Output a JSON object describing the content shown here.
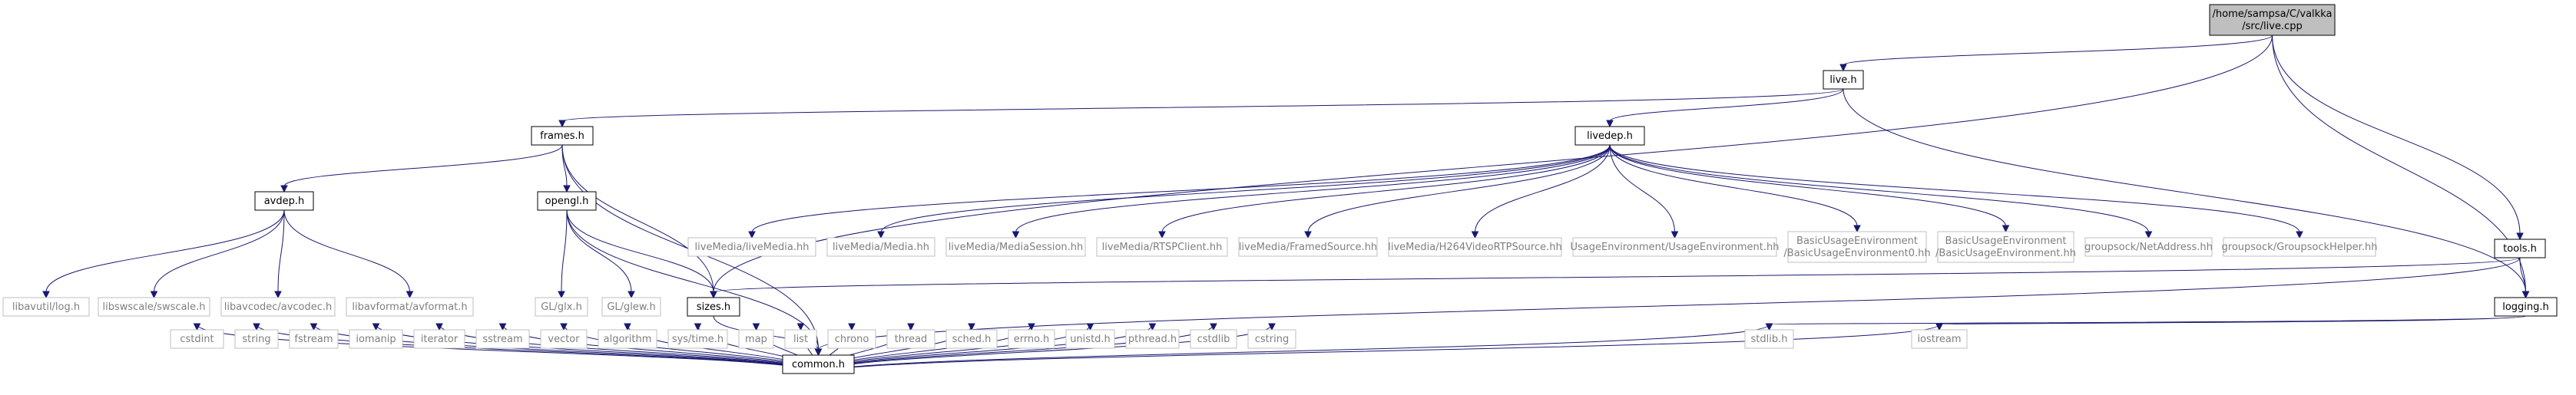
{
  "colors": {
    "edge": "#191970",
    "main_fill": "#bfbfbf",
    "node_border": "#000000",
    "external_border": "#bfbfbf",
    "external_text": "#7f7f7f"
  },
  "nodes": [
    {
      "id": "live_cpp",
      "lines": [
        "/home/sampsa/C/valkka",
        "/src/live.cpp"
      ],
      "kind": "main"
    },
    {
      "id": "live_h",
      "lines": [
        "live.h"
      ],
      "kind": "local"
    },
    {
      "id": "frames_h",
      "lines": [
        "frames.h"
      ],
      "kind": "local"
    },
    {
      "id": "livedep_h",
      "lines": [
        "livedep.h"
      ],
      "kind": "local"
    },
    {
      "id": "avdep_h",
      "lines": [
        "avdep.h"
      ],
      "kind": "local"
    },
    {
      "id": "opengl_h",
      "lines": [
        "opengl.h"
      ],
      "kind": "local"
    },
    {
      "id": "sizes_h",
      "lines": [
        "sizes.h"
      ],
      "kind": "local"
    },
    {
      "id": "tools_h",
      "lines": [
        "tools.h"
      ],
      "kind": "local"
    },
    {
      "id": "logging_h",
      "lines": [
        "logging.h"
      ],
      "kind": "local"
    },
    {
      "id": "common_h",
      "lines": [
        "common.h"
      ],
      "kind": "local"
    },
    {
      "id": "lm_livemedia",
      "lines": [
        "liveMedia/liveMedia.hh"
      ],
      "kind": "system"
    },
    {
      "id": "lm_media",
      "lines": [
        "liveMedia/Media.hh"
      ],
      "kind": "system"
    },
    {
      "id": "lm_session",
      "lines": [
        "liveMedia/MediaSession.hh"
      ],
      "kind": "system"
    },
    {
      "id": "lm_rtsp",
      "lines": [
        "liveMedia/RTSPClient.hh"
      ],
      "kind": "system"
    },
    {
      "id": "lm_framed",
      "lines": [
        "liveMedia/FramedSource.hh"
      ],
      "kind": "system"
    },
    {
      "id": "lm_h264",
      "lines": [
        "liveMedia/H264VideoRTPSource.hh"
      ],
      "kind": "system"
    },
    {
      "id": "ue",
      "lines": [
        "UsageEnvironment/UsageEnvironment.hh"
      ],
      "kind": "system"
    },
    {
      "id": "bue0",
      "lines": [
        "BasicUsageEnvironment",
        "/BasicUsageEnvironment0.hh"
      ],
      "kind": "system"
    },
    {
      "id": "bue",
      "lines": [
        "BasicUsageEnvironment",
        "/BasicUsageEnvironment.hh"
      ],
      "kind": "system"
    },
    {
      "id": "gs_net",
      "lines": [
        "groupsock/NetAddress.hh"
      ],
      "kind": "system"
    },
    {
      "id": "gs_helper",
      "lines": [
        "groupsock/GroupsockHelper.hh"
      ],
      "kind": "system"
    },
    {
      "id": "av_log",
      "lines": [
        "libavutil/log.h"
      ],
      "kind": "system"
    },
    {
      "id": "av_sws",
      "lines": [
        "libswscale/swscale.h"
      ],
      "kind": "system"
    },
    {
      "id": "av_codec",
      "lines": [
        "libavcodec/avcodec.h"
      ],
      "kind": "system"
    },
    {
      "id": "av_format",
      "lines": [
        "libavformat/avformat.h"
      ],
      "kind": "system"
    },
    {
      "id": "gl_glx",
      "lines": [
        "GL/glx.h"
      ],
      "kind": "system"
    },
    {
      "id": "gl_glew",
      "lines": [
        "GL/glew.h"
      ],
      "kind": "system"
    },
    {
      "id": "cstdint",
      "lines": [
        "cstdint"
      ],
      "kind": "system"
    },
    {
      "id": "string",
      "lines": [
        "string"
      ],
      "kind": "system"
    },
    {
      "id": "fstream",
      "lines": [
        "fstream"
      ],
      "kind": "system"
    },
    {
      "id": "iomanip",
      "lines": [
        "iomanip"
      ],
      "kind": "system"
    },
    {
      "id": "iterator",
      "lines": [
        "iterator"
      ],
      "kind": "system"
    },
    {
      "id": "sstream",
      "lines": [
        "sstream"
      ],
      "kind": "system"
    },
    {
      "id": "vector",
      "lines": [
        "vector"
      ],
      "kind": "system"
    },
    {
      "id": "algorithm",
      "lines": [
        "algorithm"
      ],
      "kind": "system"
    },
    {
      "id": "sys_time",
      "lines": [
        "sys/time.h"
      ],
      "kind": "system"
    },
    {
      "id": "map",
      "lines": [
        "map"
      ],
      "kind": "system"
    },
    {
      "id": "list",
      "lines": [
        "list"
      ],
      "kind": "system"
    },
    {
      "id": "chrono",
      "lines": [
        "chrono"
      ],
      "kind": "system"
    },
    {
      "id": "thread",
      "lines": [
        "thread"
      ],
      "kind": "system"
    },
    {
      "id": "sched",
      "lines": [
        "sched.h"
      ],
      "kind": "system"
    },
    {
      "id": "errno",
      "lines": [
        "errno.h"
      ],
      "kind": "system"
    },
    {
      "id": "unistd",
      "lines": [
        "unistd.h"
      ],
      "kind": "system"
    },
    {
      "id": "pthread",
      "lines": [
        "pthread.h"
      ],
      "kind": "system"
    },
    {
      "id": "cstdlib",
      "lines": [
        "cstdlib"
      ],
      "kind": "system"
    },
    {
      "id": "cstring",
      "lines": [
        "cstring"
      ],
      "kind": "system"
    },
    {
      "id": "stdlib",
      "lines": [
        "stdlib.h"
      ],
      "kind": "system"
    },
    {
      "id": "iostream",
      "lines": [
        "iostream"
      ],
      "kind": "system"
    }
  ],
  "edges": [
    [
      "live_cpp",
      "live_h"
    ],
    [
      "live_cpp",
      "sizes_h"
    ],
    [
      "live_cpp",
      "tools_h"
    ],
    [
      "live_cpp",
      "logging_h"
    ],
    [
      "live_h",
      "frames_h"
    ],
    [
      "live_h",
      "livedep_h"
    ],
    [
      "live_h",
      "logging_h"
    ],
    [
      "frames_h",
      "avdep_h"
    ],
    [
      "frames_h",
      "opengl_h"
    ],
    [
      "frames_h",
      "sizes_h"
    ],
    [
      "frames_h",
      "common_h"
    ],
    [
      "livedep_h",
      "lm_livemedia"
    ],
    [
      "livedep_h",
      "lm_media"
    ],
    [
      "livedep_h",
      "lm_session"
    ],
    [
      "livedep_h",
      "lm_rtsp"
    ],
    [
      "livedep_h",
      "lm_framed"
    ],
    [
      "livedep_h",
      "lm_h264"
    ],
    [
      "livedep_h",
      "ue"
    ],
    [
      "livedep_h",
      "bue0"
    ],
    [
      "livedep_h",
      "bue"
    ],
    [
      "livedep_h",
      "gs_net"
    ],
    [
      "livedep_h",
      "gs_helper"
    ],
    [
      "avdep_h",
      "av_log"
    ],
    [
      "avdep_h",
      "av_sws"
    ],
    [
      "avdep_h",
      "av_codec"
    ],
    [
      "avdep_h",
      "av_format"
    ],
    [
      "opengl_h",
      "gl_glx"
    ],
    [
      "opengl_h",
      "gl_glew"
    ],
    [
      "opengl_h",
      "sizes_h"
    ],
    [
      "opengl_h",
      "common_h"
    ],
    [
      "sizes_h",
      "common_h"
    ],
    [
      "tools_h",
      "sizes_h"
    ],
    [
      "tools_h",
      "logging_h"
    ],
    [
      "tools_h",
      "common_h"
    ],
    [
      "logging_h",
      "stdlib"
    ],
    [
      "logging_h",
      "iostream"
    ],
    [
      "common_h",
      "cstdint"
    ],
    [
      "common_h",
      "string"
    ],
    [
      "common_h",
      "fstream"
    ],
    [
      "common_h",
      "iomanip"
    ],
    [
      "common_h",
      "iterator"
    ],
    [
      "common_h",
      "sstream"
    ],
    [
      "common_h",
      "vector"
    ],
    [
      "common_h",
      "algorithm"
    ],
    [
      "common_h",
      "sys_time"
    ],
    [
      "common_h",
      "map"
    ],
    [
      "common_h",
      "list"
    ],
    [
      "common_h",
      "chrono"
    ],
    [
      "common_h",
      "thread"
    ],
    [
      "common_h",
      "sched"
    ],
    [
      "common_h",
      "errno"
    ],
    [
      "common_h",
      "unistd"
    ],
    [
      "common_h",
      "pthread"
    ],
    [
      "common_h",
      "cstdlib"
    ],
    [
      "common_h",
      "cstring"
    ],
    [
      "common_h",
      "stdlib"
    ],
    [
      "common_h",
      "iostream"
    ]
  ]
}
